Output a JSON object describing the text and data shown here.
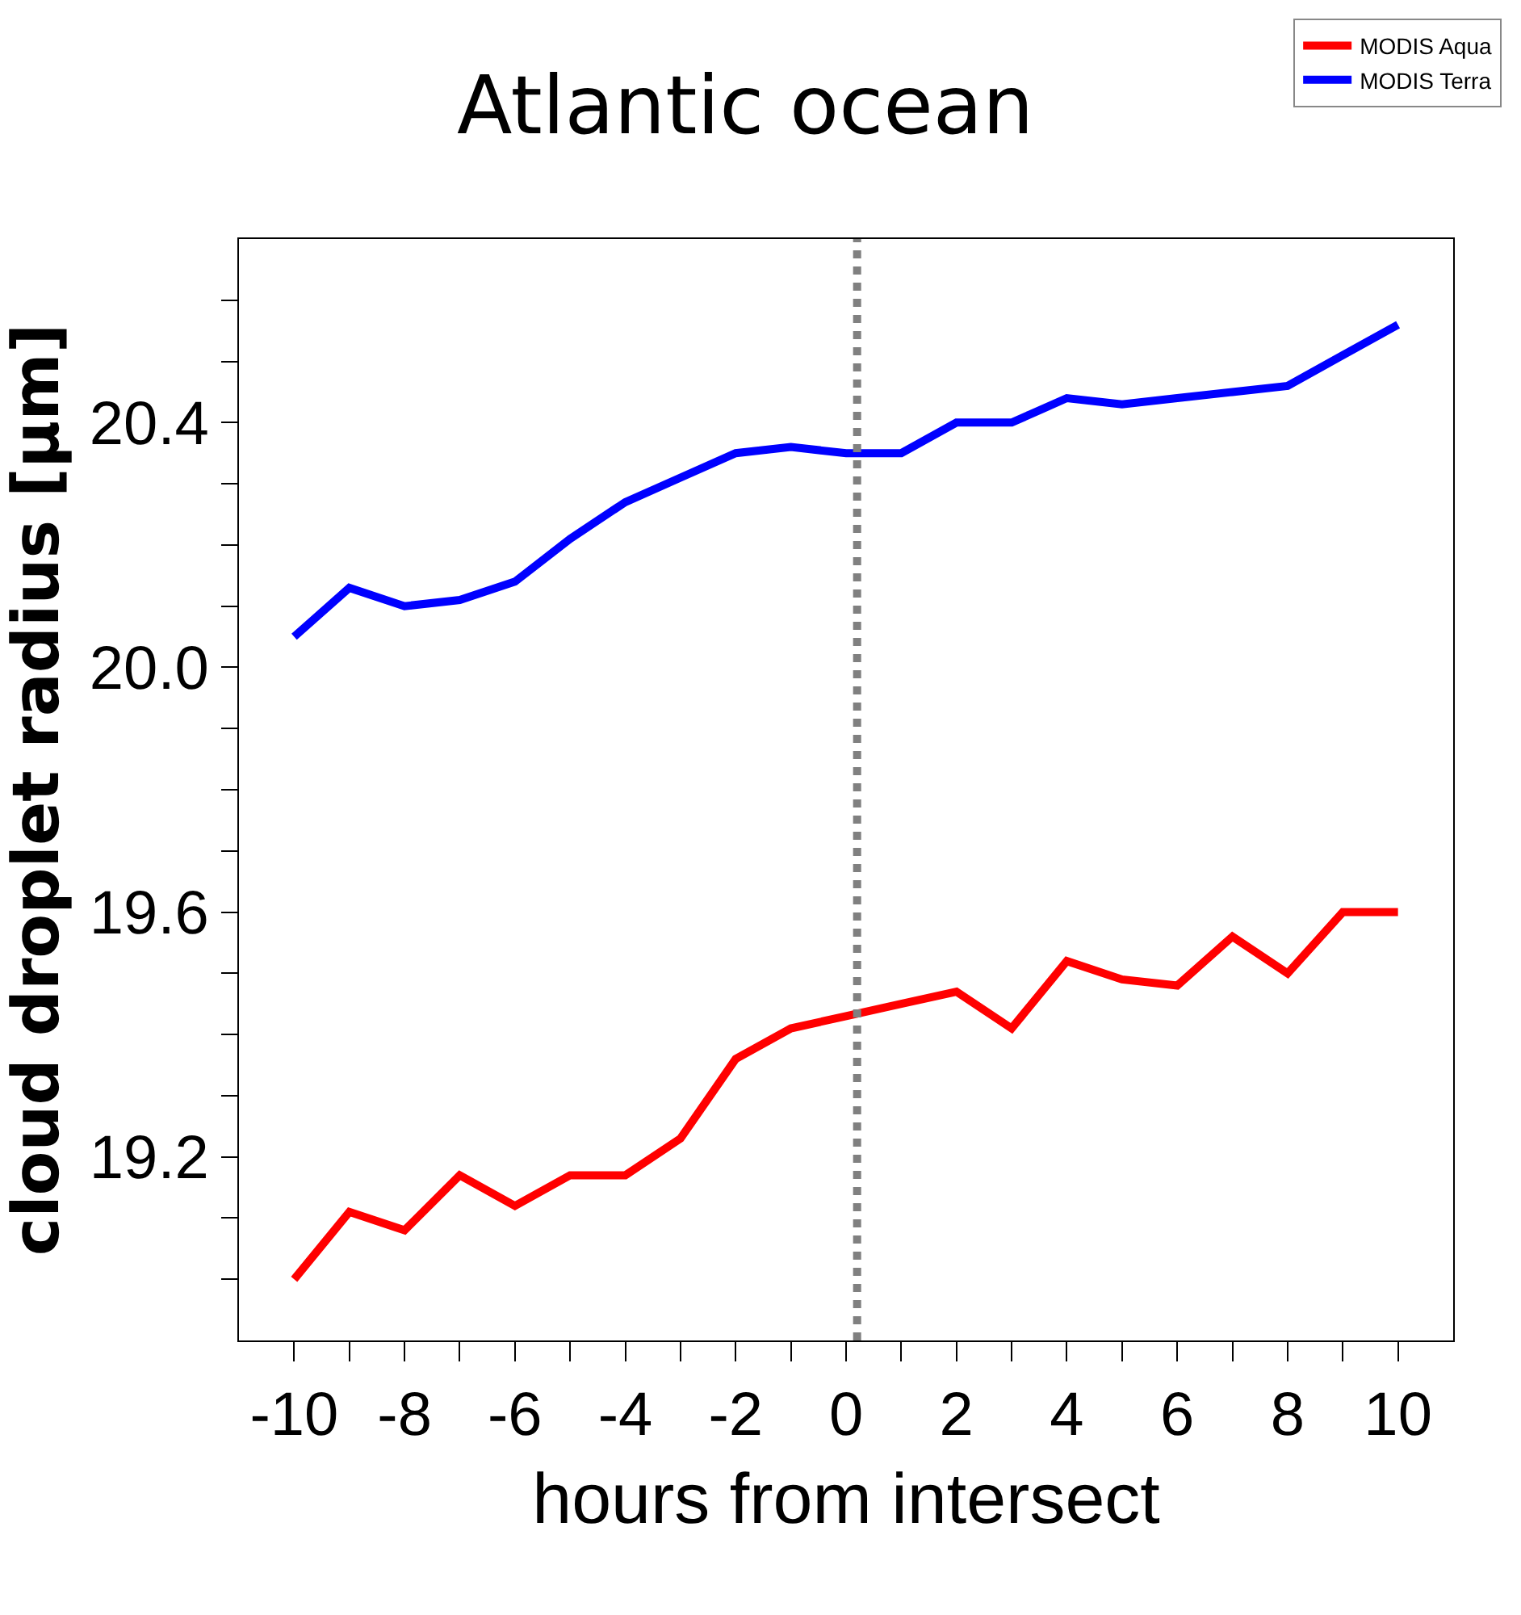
{
  "chart_data": {
    "type": "line",
    "title": "Atlantic ocean",
    "xlabel": "hours from intersect",
    "ylabel": "cloud droplet radius [µm]",
    "x": [
      -10,
      -9,
      -8,
      -7,
      -6,
      -5,
      -4,
      -3,
      -2,
      -1,
      0,
      1,
      2,
      3,
      4,
      5,
      6,
      7,
      8,
      9,
      10
    ],
    "series": [
      {
        "name": "MODIS Aqua",
        "color": "#ff0000",
        "values": [
          19.0,
          19.11,
          19.08,
          19.17,
          19.12,
          19.17,
          19.17,
          19.23,
          19.36,
          19.41,
          19.43,
          19.45,
          19.47,
          19.41,
          19.52,
          19.49,
          19.48,
          19.56,
          19.5,
          19.6,
          19.6
        ]
      },
      {
        "name": "MODIS Terra",
        "color": "#0000ff",
        "values": [
          20.05,
          20.13,
          20.1,
          20.11,
          20.14,
          20.21,
          20.27,
          20.31,
          20.35,
          20.36,
          20.35,
          20.35,
          20.4,
          20.4,
          20.44,
          20.43,
          20.44,
          20.45,
          20.46,
          20.51,
          20.56
        ]
      }
    ],
    "xlim": [
      -11,
      11
    ],
    "xticks": [
      -10,
      {
        "value": -9,
        "label": null
      },
      -8,
      {
        "value": -7,
        "label": null
      },
      -6,
      {
        "value": -5,
        "label": null
      },
      -4,
      {
        "value": -3,
        "label": null
      },
      -2,
      {
        "value": -1,
        "label": null
      },
      0,
      {
        "value": 1,
        "label": null
      },
      2,
      {
        "value": 3,
        "label": null
      },
      4,
      {
        "value": 5,
        "label": null
      },
      6,
      {
        "value": 7,
        "label": null
      },
      8,
      {
        "value": 9,
        "label": null
      },
      10
    ],
    "ylim": [
      18.9,
      20.7
    ],
    "yticks": [
      {
        "value": 19.0,
        "label": null
      },
      {
        "value": 19.1,
        "label": null
      },
      19.2,
      {
        "value": 19.3,
        "label": null
      },
      {
        "value": 19.4,
        "label": null
      },
      {
        "value": 19.5,
        "label": null
      },
      19.6,
      {
        "value": 19.7,
        "label": null
      },
      {
        "value": 19.8,
        "label": null
      },
      {
        "value": 19.9,
        "label": null
      },
      {
        "value": 20.0,
        "label": "20.0"
      },
      {
        "value": 20.1,
        "label": null
      },
      {
        "value": 20.2,
        "label": null
      },
      {
        "value": 20.3,
        "label": null
      },
      20.4,
      {
        "value": 20.5,
        "label": null
      },
      {
        "value": 20.6,
        "label": null
      }
    ],
    "ref_lines": [
      {
        "axis": "x",
        "value": 0.2,
        "label": null,
        "color": "#808080",
        "line_style": "dotted"
      }
    ],
    "legend": "top right",
    "marker": "none",
    "line_style": "solid"
  }
}
